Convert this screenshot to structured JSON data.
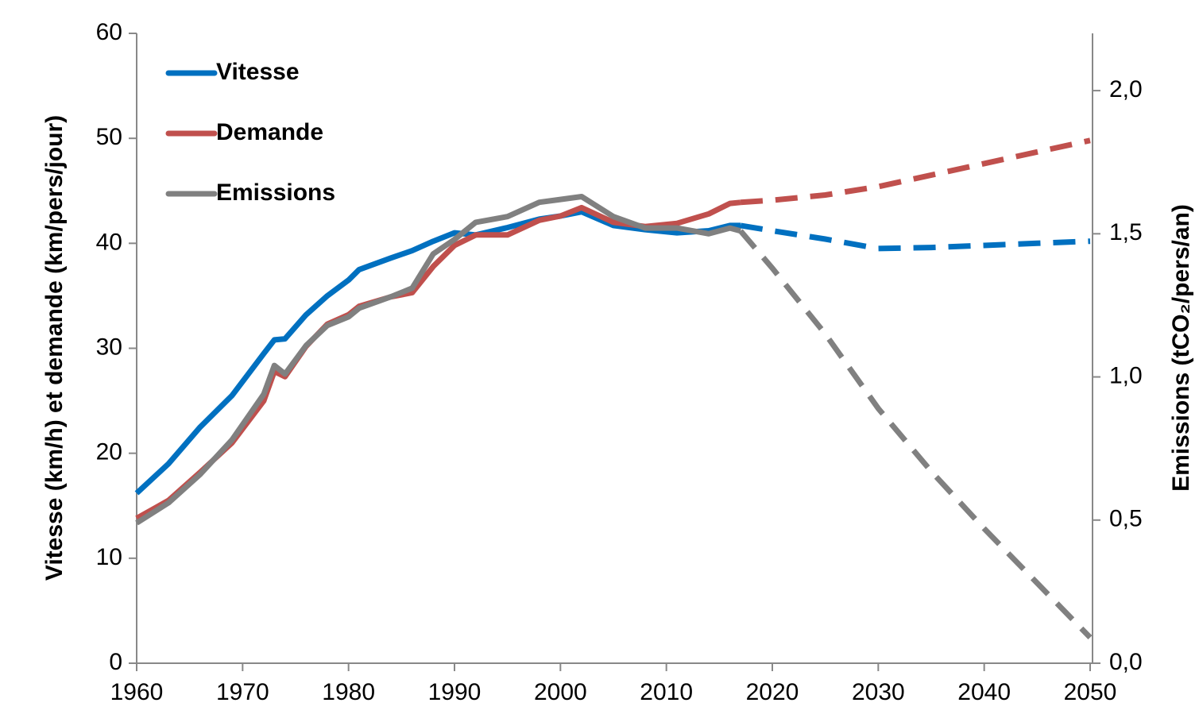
{
  "chart_data": {
    "type": "line",
    "ylabel": "Vitesse (km/h) et demande (km/pers/jour)",
    "y2label": "Emissions (tCO₂/pers/an)",
    "x": [
      1960,
      1963,
      1966,
      1969,
      1972,
      1973,
      1974,
      1976,
      1978,
      1980,
      1981,
      1984,
      1986,
      1988,
      1990,
      1992,
      1995,
      1998,
      2000,
      2002,
      2005,
      2008,
      2011,
      2014,
      2016,
      2017
    ],
    "x_projection": [
      2017,
      2020,
      2025,
      2030,
      2035,
      2040,
      2045,
      2050
    ],
    "projection_style": "dashed",
    "series": [
      {
        "name": "Vitesse",
        "color": "#0070c0",
        "axis": "y",
        "values": [
          16.2,
          19,
          22.5,
          25.5,
          29.5,
          30.8,
          30.9,
          33.2,
          35,
          36.5,
          37.5,
          38.6,
          39.3,
          40.2,
          41,
          40.8,
          41.5,
          42.3,
          42.6,
          43,
          41.7,
          41.3,
          41,
          41.2,
          41.7,
          41.7
        ],
        "projection_values": [
          41.7,
          41.2,
          40.4,
          39.5,
          39.6,
          39.8,
          40.0,
          40.2
        ]
      },
      {
        "name": "Demande",
        "color": "#c0504d",
        "axis": "y",
        "values": [
          13.8,
          15.5,
          18.2,
          21,
          25,
          27.8,
          27.3,
          30.2,
          32.3,
          33.2,
          34,
          34.9,
          35.3,
          37.8,
          39.8,
          40.8,
          40.8,
          42.2,
          42.6,
          43.4,
          42,
          41.6,
          41.9,
          42.8,
          43.8,
          43.9
        ],
        "projection_values": [
          43.9,
          44.1,
          44.6,
          45.4,
          46.5,
          47.6,
          48.7,
          49.8
        ]
      },
      {
        "name": "Emissions",
        "color": "#808080",
        "axis": "y2",
        "values": [
          0.49,
          0.56,
          0.66,
          0.78,
          0.94,
          1.04,
          1.01,
          1.11,
          1.18,
          1.21,
          1.24,
          1.28,
          1.31,
          1.43,
          1.48,
          1.54,
          1.56,
          1.61,
          1.62,
          1.63,
          1.56,
          1.52,
          1.52,
          1.5,
          1.52,
          1.51
        ],
        "projection_values": [
          1.51,
          1.38,
          1.15,
          0.89,
          0.67,
          0.47,
          0.28,
          0.09
        ]
      }
    ],
    "xlim": [
      1960,
      2050
    ],
    "xticks": [
      1960,
      1970,
      1980,
      1990,
      2000,
      2010,
      2020,
      2030,
      2040,
      2050
    ],
    "ylim": [
      0,
      60
    ],
    "yticks": [
      0,
      10,
      20,
      30,
      40,
      50,
      60
    ],
    "y2lim": [
      0,
      2.2
    ],
    "y2ticks": [
      {
        "value": 0,
        "label": "0,0"
      },
      {
        "value": 0.5,
        "label": "0,5"
      },
      {
        "value": 1,
        "label": "1,0"
      },
      {
        "value": 1.5,
        "label": "1,5"
      },
      {
        "value": 2,
        "label": "2,0"
      }
    ],
    "grid": false,
    "legend": "upper left"
  }
}
